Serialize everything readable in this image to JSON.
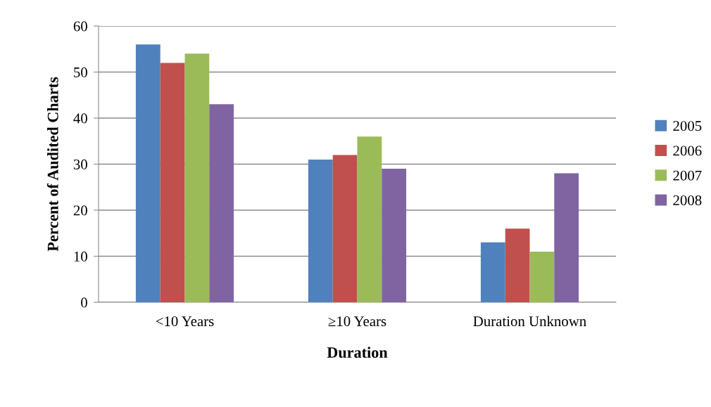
{
  "chart_data": {
    "type": "bar",
    "xlabel": "Duration",
    "ylabel": "Percent of Audited Charts",
    "categories": [
      "<10 Years",
      "≥10 Years",
      "Duration Unknown"
    ],
    "series": [
      {
        "name": "2005",
        "color": "#4f81bd",
        "values": [
          56,
          31,
          13
        ]
      },
      {
        "name": "2006",
        "color": "#c0504d",
        "values": [
          52,
          32,
          16
        ]
      },
      {
        "name": "2007",
        "color": "#9bbb59",
        "values": [
          54,
          36,
          11
        ]
      },
      {
        "name": "2008",
        "color": "#8064a2",
        "values": [
          43,
          29,
          28
        ]
      }
    ],
    "ylim": [
      0,
      60
    ],
    "yticks": [
      0,
      10,
      20,
      30,
      40,
      50,
      60
    ],
    "grid": "y",
    "legend": "right"
  }
}
